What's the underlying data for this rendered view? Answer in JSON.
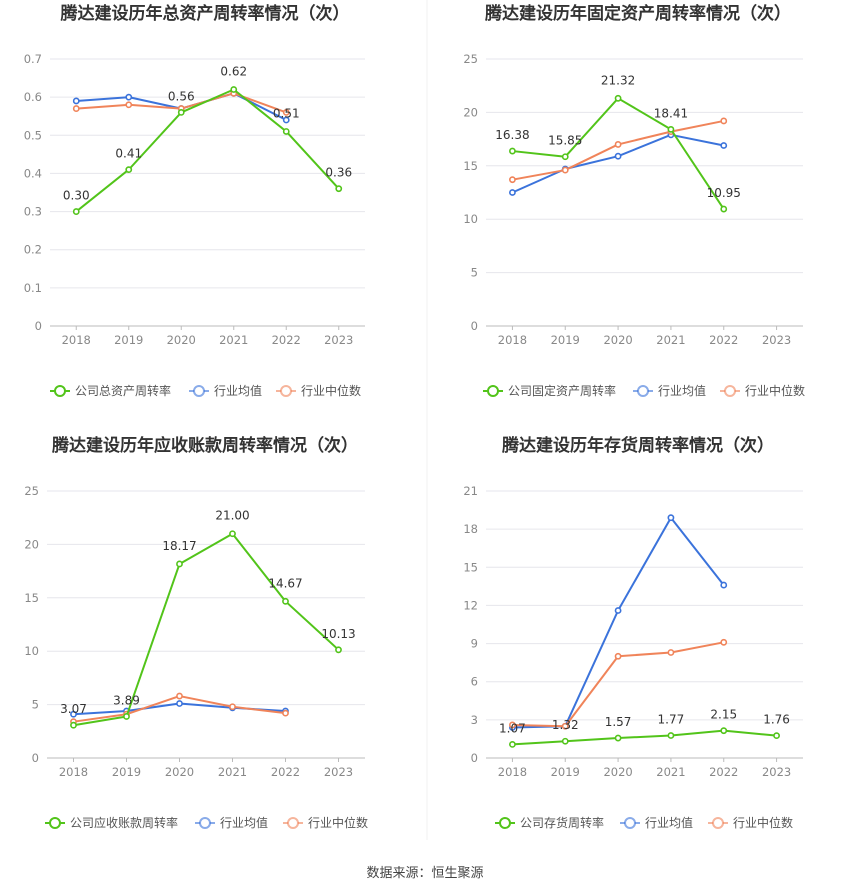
{
  "footer": {
    "source": "数据来源：恒生聚源"
  },
  "legend_labels": {
    "avg": "行业均值",
    "median": "行业中位数"
  },
  "colors": {
    "company": "#52c41a",
    "avg": "#3b73db",
    "median": "#f0845a",
    "grid": "#e6e6ec",
    "axis_text": "#888888",
    "title": "#333333"
  },
  "chart_data": [
    {
      "type": "line",
      "title": "腾达建设历年总资产周转率情况（次）",
      "categories": [
        "2018",
        "2019",
        "2020",
        "2021",
        "2022",
        "2023"
      ],
      "ylim": [
        0,
        0.7
      ],
      "yticks": [
        "0",
        "0.1",
        "0.2",
        "0.3",
        "0.4",
        "0.5",
        "0.6",
        "0.7"
      ],
      "grid": true,
      "legend": "bottom",
      "series": [
        {
          "name": "公司总资产周转率",
          "role": "company",
          "values": [
            0.3,
            0.41,
            0.56,
            0.62,
            0.51,
            0.36
          ],
          "labels": [
            "0.30",
            "0.41",
            "0.56",
            "0.62",
            "0.51",
            "0.36"
          ]
        },
        {
          "name": "行业均值",
          "role": "avg",
          "values": [
            0.59,
            0.6,
            0.57,
            0.61,
            0.54,
            null
          ]
        },
        {
          "name": "行业中位数",
          "role": "median",
          "values": [
            0.57,
            0.58,
            0.57,
            0.61,
            0.56,
            null
          ]
        }
      ]
    },
    {
      "type": "line",
      "title": "腾达建设历年固定资产周转率情况（次）",
      "categories": [
        "2018",
        "2019",
        "2020",
        "2021",
        "2022",
        "2023"
      ],
      "ylim": [
        0,
        25
      ],
      "yticks": [
        "0",
        "5",
        "10",
        "15",
        "20",
        "25"
      ],
      "grid": true,
      "legend": "bottom",
      "series": [
        {
          "name": "公司固定资产周转率",
          "role": "company",
          "values": [
            16.38,
            15.85,
            21.32,
            18.41,
            10.95,
            null
          ],
          "labels": [
            "16.38",
            "15.85",
            "21.32",
            "18.41",
            "10.95",
            ""
          ]
        },
        {
          "name": "行业均值",
          "role": "avg",
          "values": [
            12.5,
            14.7,
            15.9,
            17.9,
            16.9,
            null
          ]
        },
        {
          "name": "行业中位数",
          "role": "median",
          "values": [
            13.7,
            14.6,
            17.0,
            18.2,
            19.2,
            null
          ]
        }
      ]
    },
    {
      "type": "line",
      "title": "腾达建设历年应收账款周转率情况（次）",
      "categories": [
        "2018",
        "2019",
        "2020",
        "2021",
        "2022",
        "2023"
      ],
      "ylim": [
        0,
        25
      ],
      "yticks": [
        "0",
        "5",
        "10",
        "15",
        "20",
        "25"
      ],
      "grid": true,
      "legend": "bottom",
      "series": [
        {
          "name": "公司应收账款周转率",
          "role": "company",
          "values": [
            3.07,
            3.89,
            18.17,
            21.0,
            14.67,
            10.13
          ],
          "labels": [
            "3.07",
            "3.89",
            "18.17",
            "21.00",
            "14.67",
            "10.13"
          ]
        },
        {
          "name": "行业均值",
          "role": "avg",
          "values": [
            4.1,
            4.4,
            5.1,
            4.7,
            4.4,
            null
          ]
        },
        {
          "name": "行业中位数",
          "role": "median",
          "values": [
            3.4,
            4.1,
            5.8,
            4.8,
            4.2,
            null
          ]
        }
      ]
    },
    {
      "type": "line",
      "title": "腾达建设历年存货周转率情况（次）",
      "categories": [
        "2018",
        "2019",
        "2020",
        "2021",
        "2022",
        "2023"
      ],
      "ylim": [
        0,
        21
      ],
      "yticks": [
        "0",
        "3",
        "6",
        "9",
        "12",
        "15",
        "18",
        "21"
      ],
      "grid": true,
      "legend": "bottom",
      "series": [
        {
          "name": "公司存货周转率",
          "role": "company",
          "values": [
            1.07,
            1.32,
            1.57,
            1.77,
            2.15,
            1.76
          ],
          "labels": [
            "1.07",
            "1.32",
            "1.57",
            "1.77",
            "2.15",
            "1.76"
          ]
        },
        {
          "name": "行业均值",
          "role": "avg",
          "values": [
            2.4,
            2.5,
            11.6,
            18.9,
            13.6,
            null
          ]
        },
        {
          "name": "行业中位数",
          "role": "median",
          "values": [
            2.6,
            2.5,
            8.0,
            8.3,
            9.1,
            null
          ]
        }
      ]
    }
  ]
}
